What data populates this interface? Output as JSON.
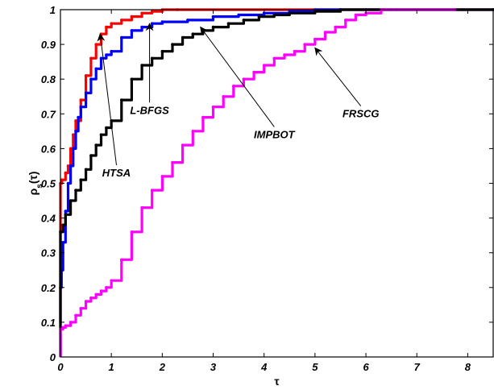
{
  "chart_data": {
    "type": "line",
    "xlabel": "τ",
    "ylabel_main": "ρ",
    "ylabel_sub": "s",
    "ylabel_tail": "(τ)",
    "xlim": [
      0,
      8.5
    ],
    "ylim": [
      0,
      1
    ],
    "x_ticks": [
      "0",
      "1",
      "2",
      "3",
      "4",
      "5",
      "6",
      "7",
      "8"
    ],
    "y_ticks": [
      "0",
      "0.1",
      "0.2",
      "0.3",
      "0.4",
      "0.5",
      "0.6",
      "0.7",
      "0.8",
      "0.9",
      "1"
    ],
    "grid": false,
    "series": [
      {
        "name": "HTSA",
        "color": "#ff0000",
        "x": [
          0,
          0,
          0.03,
          0.1,
          0.15,
          0.2,
          0.25,
          0.3,
          0.4,
          0.5,
          0.6,
          0.7,
          0.8,
          0.9,
          1.0,
          1.2,
          1.4,
          1.6,
          1.8,
          2.0,
          2.3,
          8.5
        ],
        "y": [
          0.1,
          0.5,
          0.51,
          0.53,
          0.55,
          0.6,
          0.64,
          0.68,
          0.74,
          0.81,
          0.86,
          0.9,
          0.93,
          0.95,
          0.96,
          0.97,
          0.98,
          0.99,
          0.995,
          1.0,
          1.0,
          1.0
        ]
      },
      {
        "name": "L-BFGS",
        "color": "#0000ff",
        "x": [
          0,
          0,
          0.02,
          0.05,
          0.1,
          0.15,
          0.2,
          0.25,
          0.3,
          0.35,
          0.4,
          0.5,
          0.6,
          0.7,
          0.8,
          0.9,
          1.0,
          1.2,
          1.4,
          1.6,
          1.8,
          2.0,
          2.5,
          3.0,
          3.5,
          4.0,
          4.5,
          5.0,
          5.5,
          6.0,
          6.5,
          8.5
        ],
        "y": [
          0.0,
          0.2,
          0.25,
          0.33,
          0.42,
          0.5,
          0.55,
          0.6,
          0.65,
          0.69,
          0.72,
          0.76,
          0.8,
          0.83,
          0.86,
          0.87,
          0.88,
          0.92,
          0.94,
          0.95,
          0.96,
          0.965,
          0.97,
          0.98,
          0.985,
          0.99,
          0.995,
          1.0,
          1.0,
          1.0,
          1.0,
          1.0
        ]
      },
      {
        "name": "IMPBOT",
        "color": "#000000",
        "x": [
          0,
          0,
          0.05,
          0.1,
          0.2,
          0.3,
          0.4,
          0.5,
          0.6,
          0.7,
          0.8,
          0.9,
          1.0,
          1.2,
          1.4,
          1.6,
          1.8,
          2.0,
          2.2,
          2.4,
          2.6,
          2.8,
          3.0,
          3.3,
          3.6,
          3.9,
          4.2,
          4.5,
          5.0,
          5.5,
          6.0,
          6.6,
          8.5
        ],
        "y": [
          0.0,
          0.36,
          0.38,
          0.41,
          0.45,
          0.48,
          0.51,
          0.54,
          0.58,
          0.61,
          0.64,
          0.66,
          0.68,
          0.74,
          0.8,
          0.84,
          0.86,
          0.88,
          0.9,
          0.92,
          0.93,
          0.94,
          0.95,
          0.96,
          0.97,
          0.98,
          0.985,
          0.99,
          0.995,
          1.0,
          1.0,
          1.0,
          1.0
        ]
      },
      {
        "name": "FRSCG",
        "color": "#ff00ff",
        "x": [
          0,
          0,
          0.05,
          0.1,
          0.2,
          0.3,
          0.4,
          0.5,
          0.6,
          0.7,
          0.8,
          0.9,
          1.0,
          1.2,
          1.4,
          1.6,
          1.8,
          2.0,
          2.2,
          2.4,
          2.6,
          2.8,
          3.0,
          3.2,
          3.4,
          3.6,
          3.8,
          4.0,
          4.2,
          4.4,
          4.6,
          4.8,
          5.0,
          5.2,
          5.4,
          5.6,
          5.8,
          6.0,
          6.3,
          6.6,
          7.0,
          7.75
        ],
        "y": [
          0.0,
          0.08,
          0.085,
          0.09,
          0.1,
          0.12,
          0.14,
          0.16,
          0.17,
          0.18,
          0.19,
          0.2,
          0.22,
          0.28,
          0.36,
          0.43,
          0.48,
          0.52,
          0.56,
          0.61,
          0.65,
          0.69,
          0.72,
          0.75,
          0.78,
          0.8,
          0.82,
          0.84,
          0.86,
          0.87,
          0.88,
          0.9,
          0.915,
          0.935,
          0.95,
          0.97,
          0.985,
          0.99,
          1.0,
          1.0,
          1.0,
          1.0
        ]
      }
    ],
    "annotations": [
      {
        "text": "HTSA",
        "series": "HTSA",
        "arrow_to": [
          0.78,
          0.93
        ],
        "text_at": [
          1.1,
          0.52
        ]
      },
      {
        "text": "L-BFGS",
        "series": "L-BFGS",
        "arrow_to": [
          1.75,
          0.96
        ],
        "text_at": [
          1.75,
          0.7
        ]
      },
      {
        "text": "IMPBOT",
        "series": "IMPBOT",
        "arrow_to": [
          2.75,
          0.95
        ],
        "text_at": [
          4.2,
          0.63
        ]
      },
      {
        "text": "FRSCG",
        "series": "FRSCG",
        "arrow_to": [
          5.0,
          0.89
        ],
        "text_at": [
          5.9,
          0.69
        ]
      }
    ]
  }
}
